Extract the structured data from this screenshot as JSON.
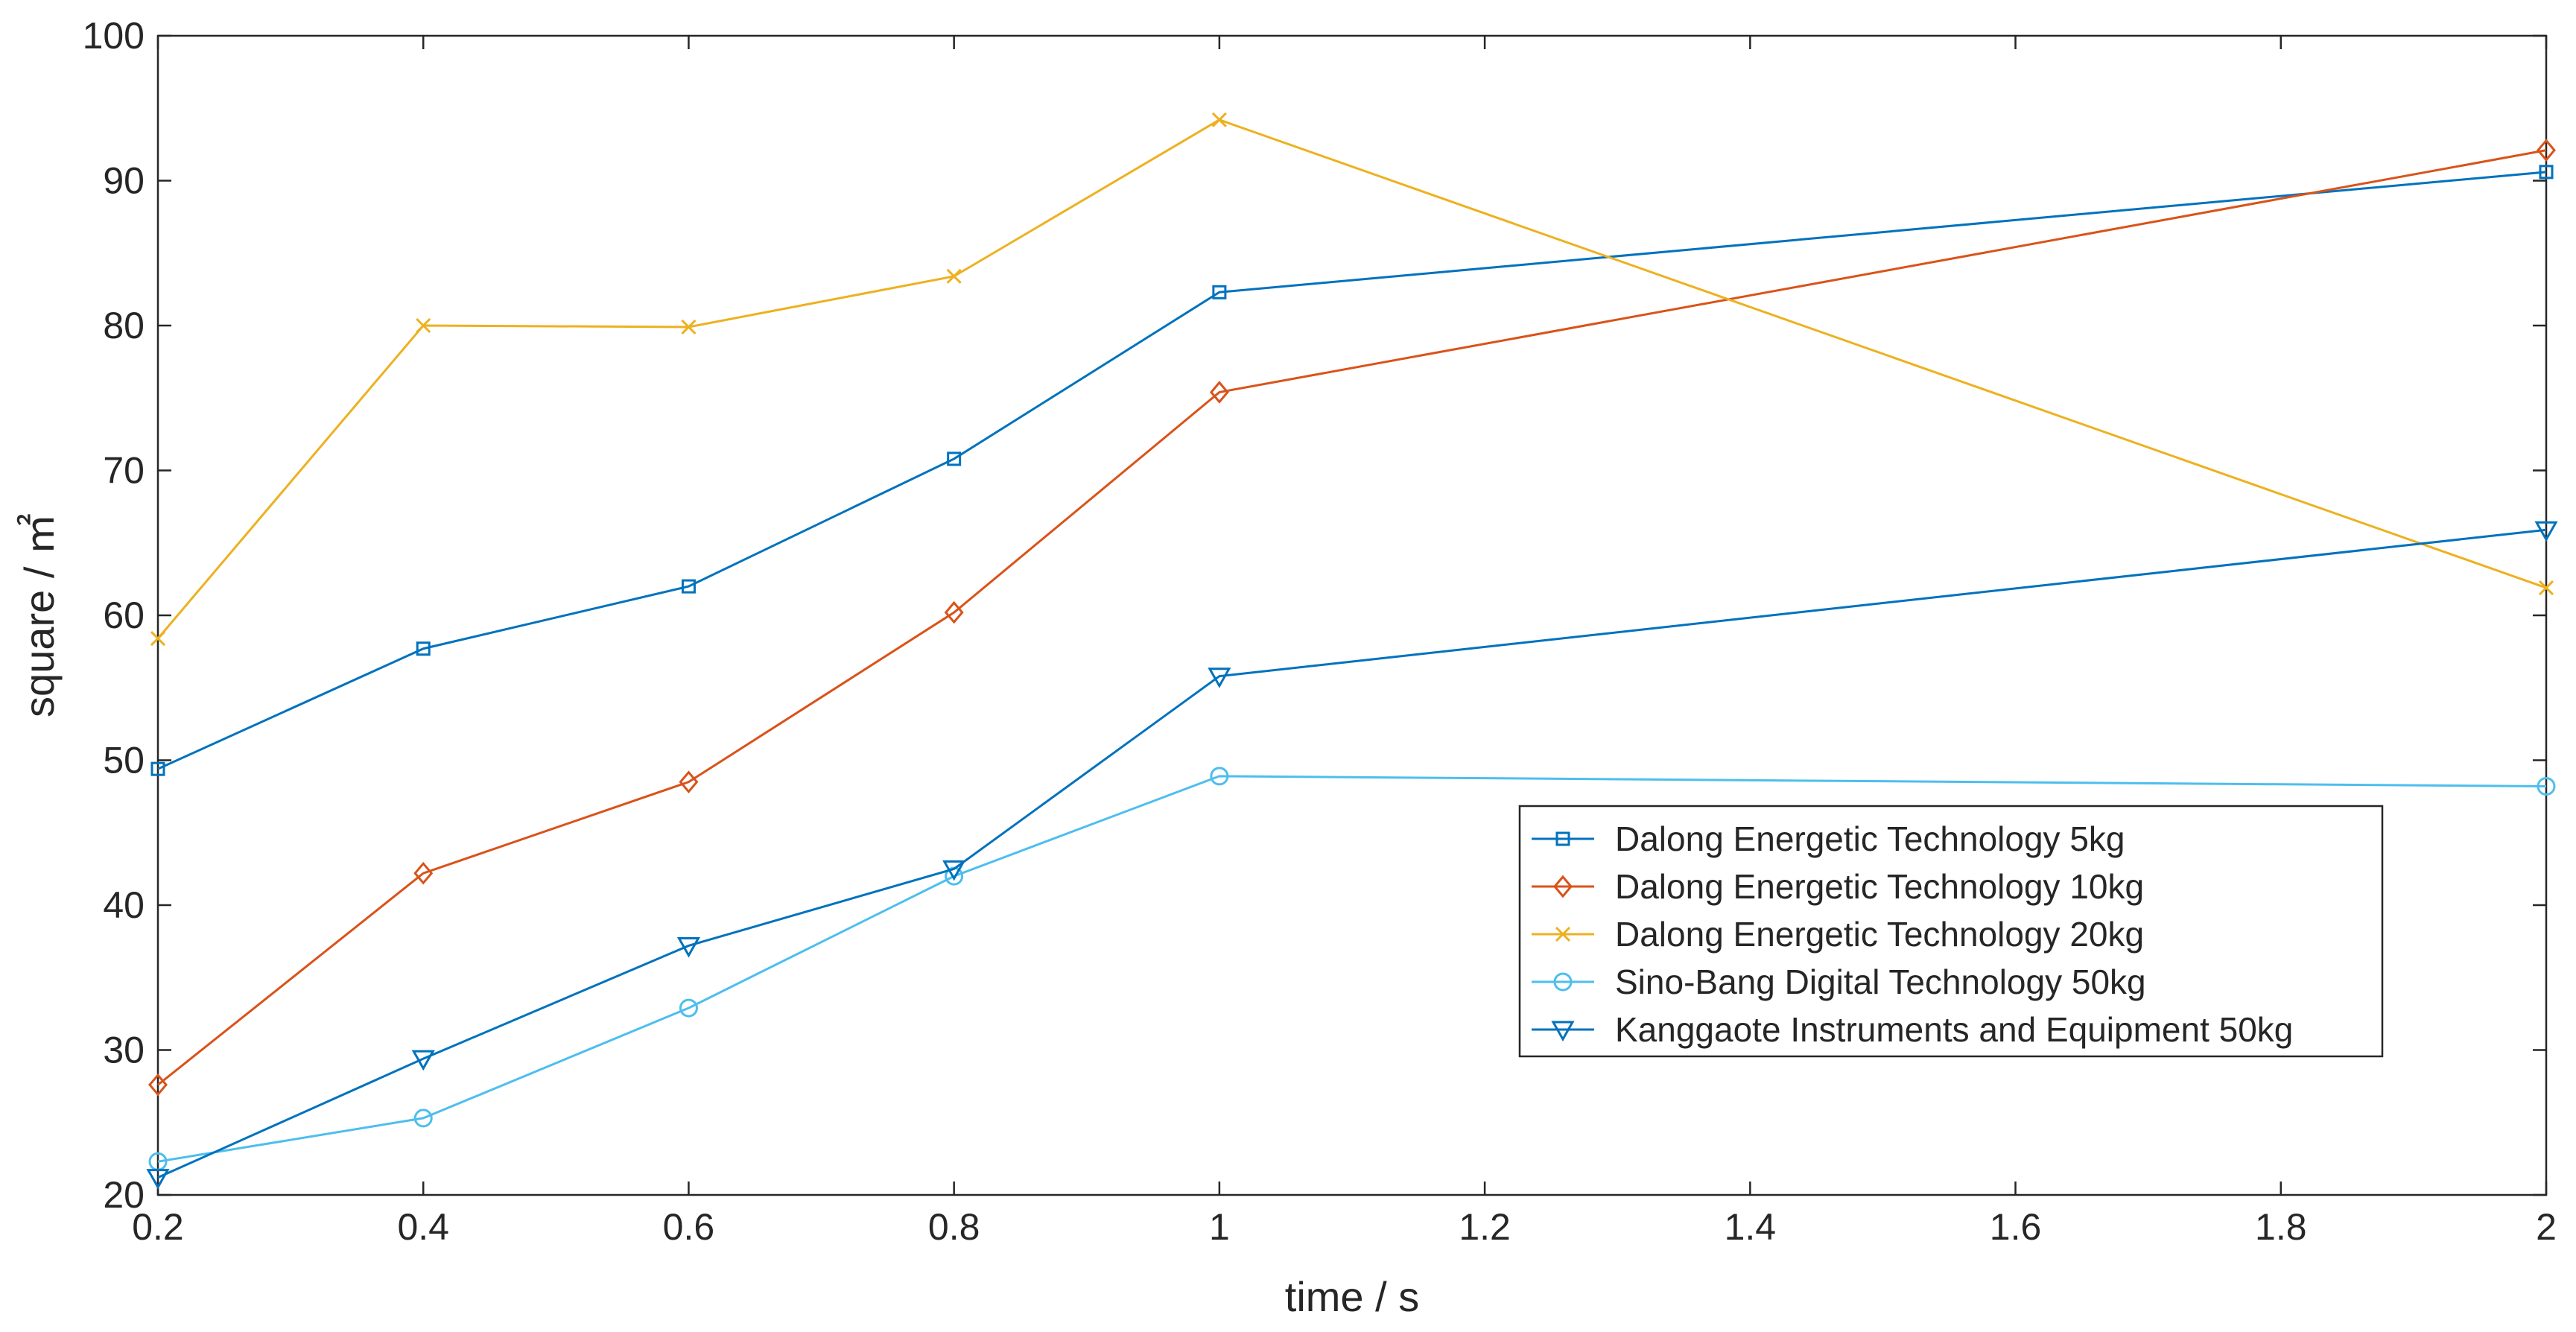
{
  "chart_data": {
    "type": "line",
    "title": "",
    "xlabel": "time / s",
    "ylabel": "square / ㎡",
    "xlim": [
      0.2,
      2
    ],
    "ylim": [
      20,
      100
    ],
    "xticks": [
      0.2,
      0.4,
      0.6,
      0.8,
      1,
      1.2,
      1.4,
      1.6,
      1.8,
      2
    ],
    "xtick_labels": [
      "0.2",
      "0.4",
      "0.6",
      "0.8",
      "1",
      "1.2",
      "1.4",
      "1.6",
      "1.8",
      "2"
    ],
    "yticks": [
      20,
      30,
      40,
      50,
      60,
      70,
      80,
      90,
      100
    ],
    "ytick_labels": [
      "20",
      "30",
      "40",
      "50",
      "60",
      "70",
      "80",
      "90",
      "100"
    ],
    "grid": false,
    "legend_position": "lower-right",
    "x": [
      0.2,
      0.4,
      0.6,
      0.8,
      1,
      2
    ],
    "series": [
      {
        "name": "Dalong Energetic Technology 5kg",
        "marker": "square",
        "color": "#0072BD",
        "values": [
          49.4,
          57.7,
          62.0,
          70.8,
          82.3,
          90.6
        ]
      },
      {
        "name": "Dalong Energetic Technology 10kg",
        "marker": "diamond",
        "color": "#D95319",
        "values": [
          27.6,
          42.2,
          48.5,
          60.2,
          75.4,
          92.1
        ]
      },
      {
        "name": "Dalong Energetic Technology 20kg",
        "marker": "x",
        "color": "#EDB120",
        "values": [
          58.4,
          80.0,
          79.9,
          83.4,
          94.2,
          61.9
        ]
      },
      {
        "name": "Sino-Bang Digital Technology 50kg",
        "marker": "circle",
        "color": "#4DBEEE",
        "values": [
          22.3,
          25.3,
          32.9,
          42.0,
          48.9,
          48.2
        ]
      },
      {
        "name": "Kanggaote Instruments and Equipment 50kg",
        "marker": "triangle-down",
        "color": "#0072BD",
        "values": [
          21.2,
          29.4,
          37.2,
          42.5,
          55.8,
          65.9
        ]
      }
    ]
  }
}
